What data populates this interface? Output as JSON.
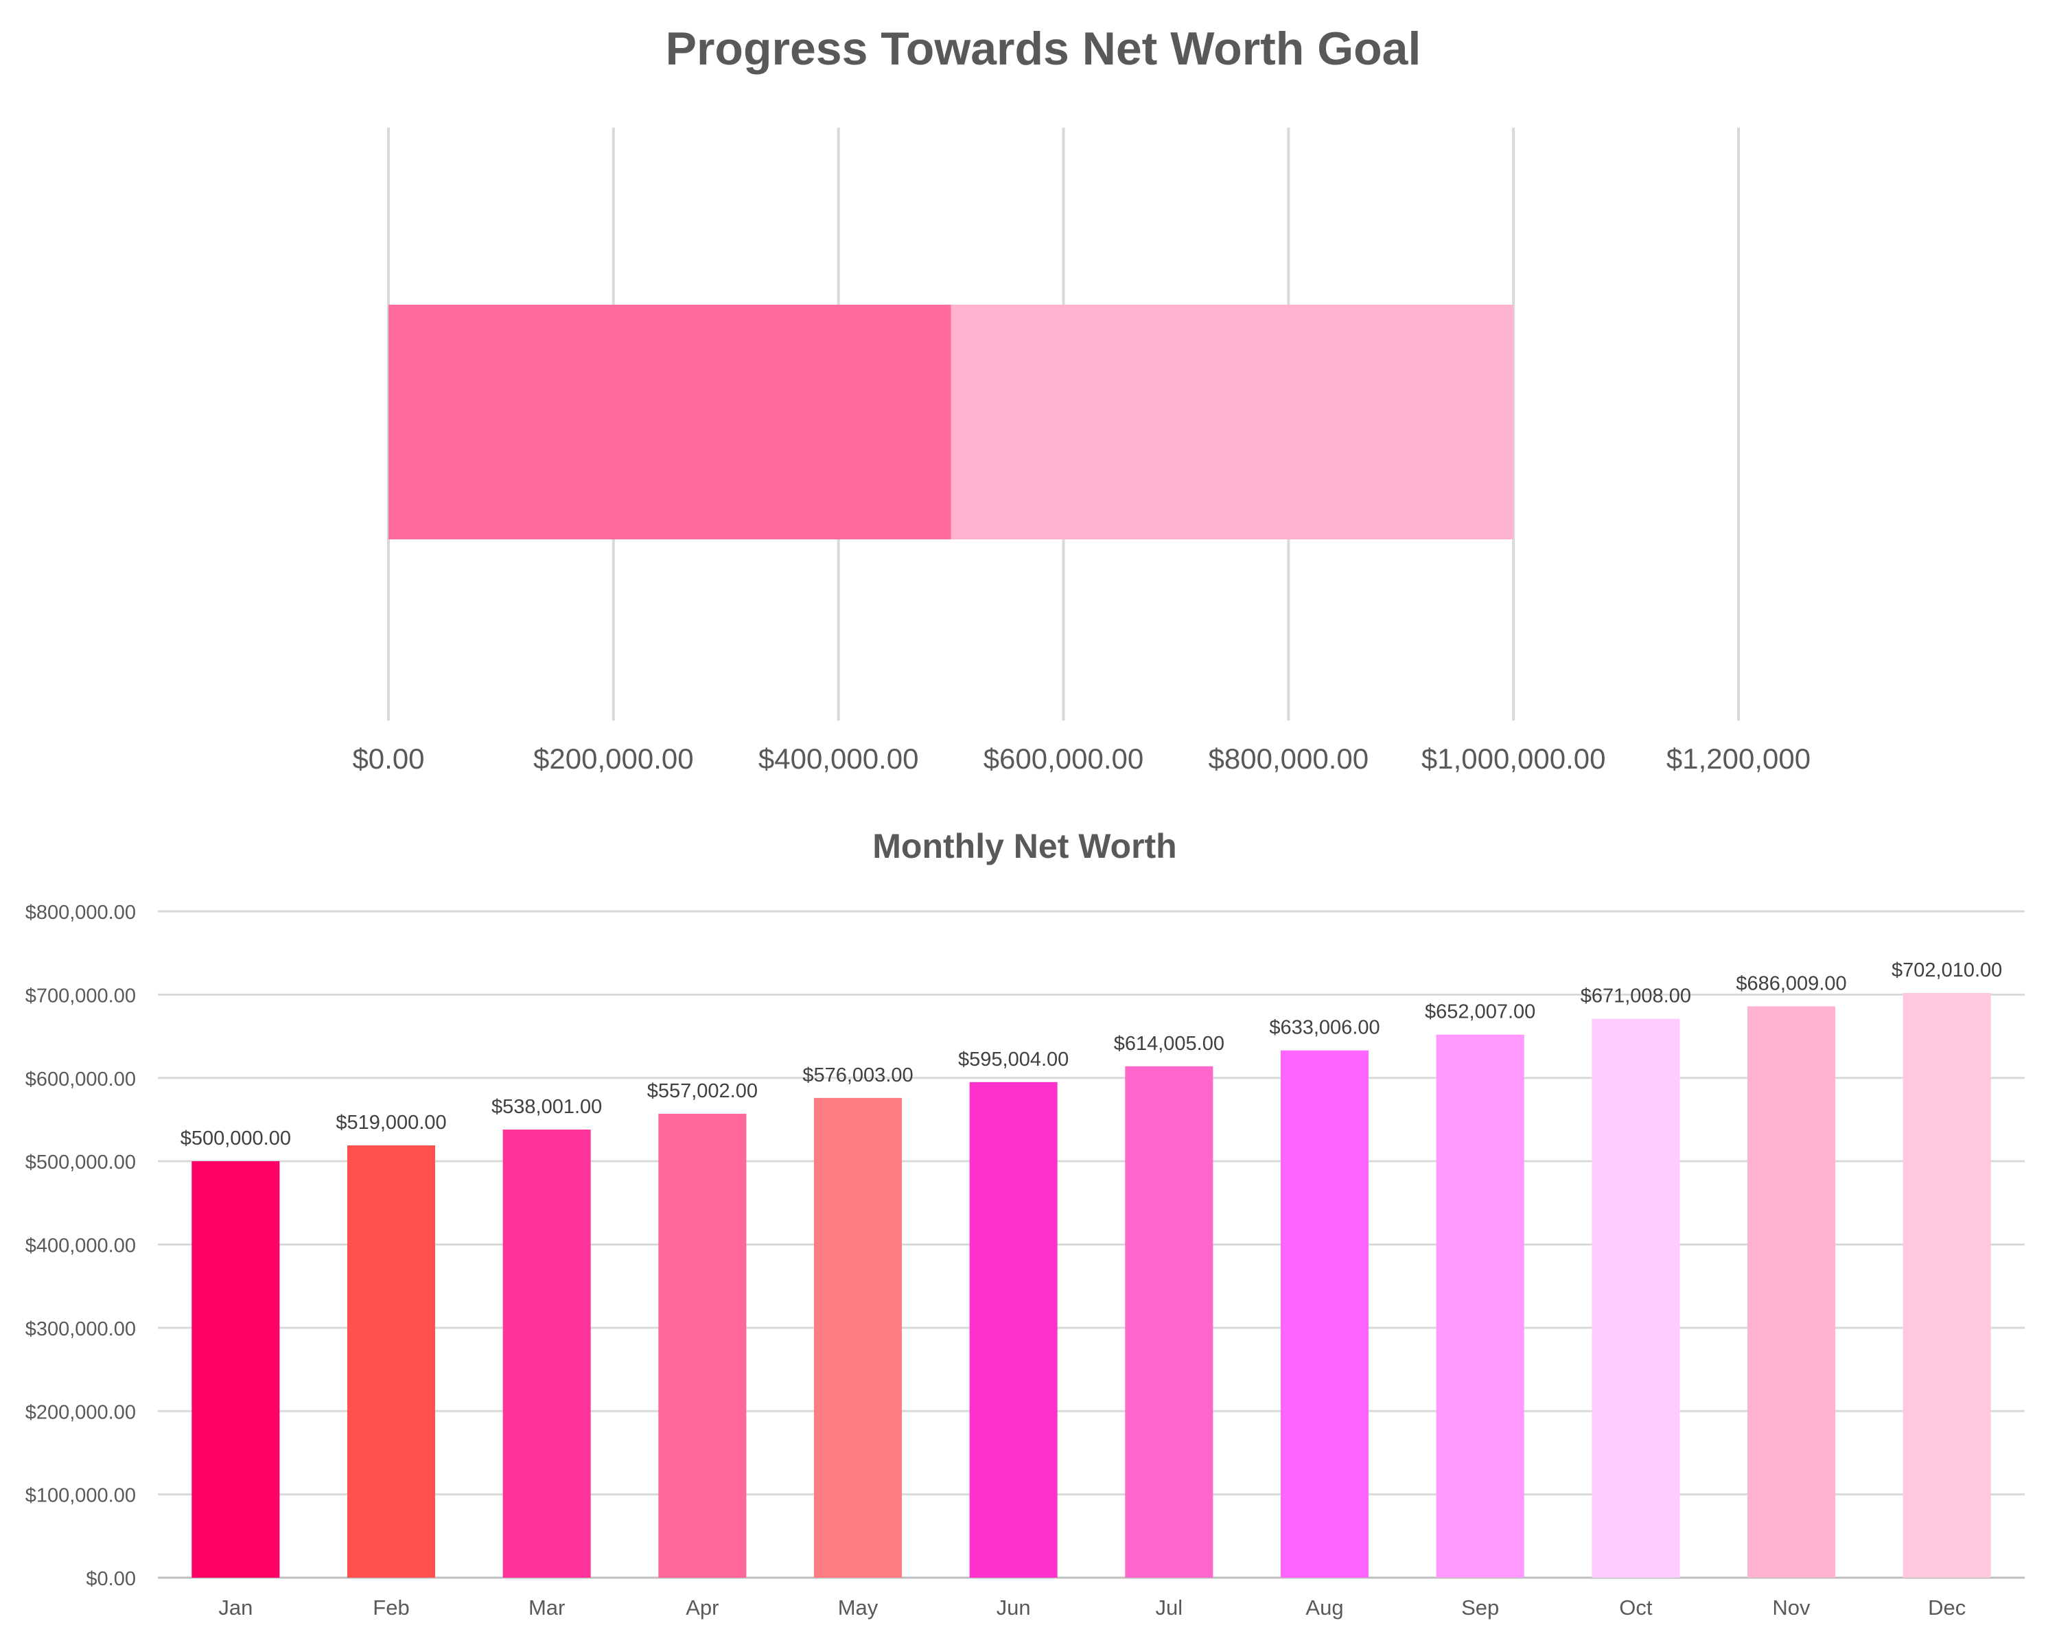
{
  "chart_data": [
    {
      "type": "bar",
      "orientation": "horizontal",
      "stacked": true,
      "title": "Progress Towards Net Worth Goal",
      "xlabel": "",
      "ylabel": "",
      "xlim": [
        0,
        1200000
      ],
      "grid": true,
      "legend": "none",
      "x_ticks": [
        {
          "value": 0,
          "label": "$0.00"
        },
        {
          "value": 200000,
          "label": "$200,000.00"
        },
        {
          "value": 400000,
          "label": "$400,000.00"
        },
        {
          "value": 600000,
          "label": "$600,000.00"
        },
        {
          "value": 800000,
          "label": "$800,000.00"
        },
        {
          "value": 1000000,
          "label": "$1,000,000.00"
        },
        {
          "value": 1200000,
          "label": "$1,200,000"
        }
      ],
      "series": [
        {
          "values": [
            500000
          ],
          "color": "#FF6B9D"
        },
        {
          "values": [
            500000
          ],
          "color": "#FFB3D1"
        }
      ]
    },
    {
      "type": "bar",
      "title": "Monthly Net Worth",
      "xlabel": "",
      "ylabel": "",
      "ylim": [
        0,
        800000
      ],
      "grid": true,
      "legend": "none",
      "categories": [
        "Jan",
        "Feb",
        "Mar",
        "Apr",
        "May",
        "Jun",
        "Jul",
        "Aug",
        "Sep",
        "Oct",
        "Nov",
        "Dec"
      ],
      "values": [
        500000,
        519000,
        538001,
        557002,
        576003,
        595004,
        614005,
        633006,
        652007,
        671008,
        686009,
        702010
      ],
      "data_labels": [
        "$500,000.00",
        "$519,000.00",
        "$538,001.00",
        "$557,002.00",
        "$576,003.00",
        "$595,004.00",
        "$614,005.00",
        "$633,006.00",
        "$652,007.00",
        "$671,008.00",
        "$686,009.00",
        "$702,010.00"
      ],
      "colors": [
        "#FF0066",
        "#FF5050",
        "#FF3399",
        "#FF6699",
        "#FF7C80",
        "#FF33CC",
        "#FF66CC",
        "#FF66FF",
        "#FF99FF",
        "#FFCCFF",
        "#FFB3D1",
        "#FFC8DF"
      ],
      "y_ticks": [
        {
          "value": 0,
          "label": "$0.00"
        },
        {
          "value": 100000,
          "label": "$100,000.00"
        },
        {
          "value": 200000,
          "label": "$200,000.00"
        },
        {
          "value": 300000,
          "label": "$300,000.00"
        },
        {
          "value": 400000,
          "label": "$400,000.00"
        },
        {
          "value": 500000,
          "label": "$500,000.00"
        },
        {
          "value": 600000,
          "label": "$600,000.00"
        },
        {
          "value": 700000,
          "label": "$700,000.00"
        },
        {
          "value": 800000,
          "label": "$800,000.00"
        }
      ]
    }
  ],
  "colors": {
    "gridline": "#D9D9D9",
    "axis_line": "#BFBFBF",
    "title_text": "#595959",
    "tick_text": "#595959",
    "label_text": "#404040"
  }
}
